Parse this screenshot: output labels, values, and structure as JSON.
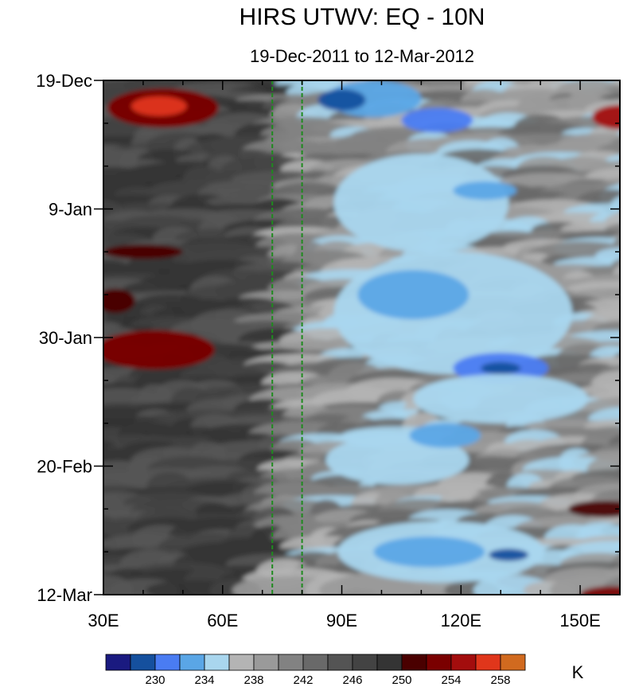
{
  "chart_data": {
    "type": "heatmap",
    "title": "HIRS UTWV: EQ - 10N",
    "subtitle": "19-Dec-2011 to 12-Mar-2012",
    "x_ticks": [
      {
        "value": 30,
        "label": "30E"
      },
      {
        "value": 60,
        "label": "60E"
      },
      {
        "value": 90,
        "label": "90E"
      },
      {
        "value": 120,
        "label": "120E"
      },
      {
        "value": 150,
        "label": "150E"
      }
    ],
    "x_range": [
      30,
      160
    ],
    "x_minor_step": 10,
    "y_ticks": [
      {
        "value": 0,
        "label": "19-Dec"
      },
      {
        "value": 21,
        "label": "9-Jan"
      },
      {
        "value": 42,
        "label": "30-Jan"
      },
      {
        "value": 63,
        "label": "20-Feb"
      },
      {
        "value": 84,
        "label": "12-Mar"
      }
    ],
    "y_range_days": [
      0,
      84
    ],
    "y_minor_step": 7,
    "reference_lines_lon": [
      72.5,
      80
    ],
    "reference_line_color": "#1f8a1f",
    "colorbar": {
      "unit": "K",
      "colors": [
        "#1a1a80",
        "#15509e",
        "#4a7cf2",
        "#5aa6e6",
        "#a9d6ee",
        "#b4b4b4",
        "#9a9a9a",
        "#828282",
        "#696969",
        "#545454",
        "#434343",
        "#343434",
        "#4a0000",
        "#7a0000",
        "#a30d0d",
        "#e0361b",
        "#d16a1f"
      ],
      "labels": [
        {
          "after_box": 2,
          "text": "230"
        },
        {
          "after_box": 4,
          "text": "234"
        },
        {
          "after_box": 6,
          "text": "238"
        },
        {
          "after_box": 8,
          "text": "242"
        },
        {
          "after_box": 10,
          "text": "246"
        },
        {
          "after_box": 12,
          "text": "250"
        },
        {
          "after_box": 14,
          "text": "254"
        },
        {
          "after_box": 16,
          "text": "258"
        }
      ]
    },
    "field_levels": [
      {
        "level": 0,
        "lon_ranges": [
          [
            30,
            160
          ]
        ]
      }
    ],
    "field_patches": [
      {
        "lon": 45,
        "day": 4.5,
        "rx": 14,
        "ry": 3.2,
        "level": 13
      },
      {
        "lon": 44,
        "day": 4.2,
        "rx": 7,
        "ry": 1.6,
        "level": 15
      },
      {
        "lon": 43,
        "day": 44,
        "rx": 15,
        "ry": 3.2,
        "level": 13
      },
      {
        "lon": 160,
        "day": 6,
        "rx": 7,
        "ry": 2,
        "level": 14
      },
      {
        "lon": 158,
        "day": 84,
        "rx": 8,
        "ry": 1.4,
        "level": 13
      },
      {
        "lon": 156,
        "day": 70,
        "rx": 9,
        "ry": 1.4,
        "level": 12
      },
      {
        "lon": 40,
        "day": 28,
        "rx": 10,
        "ry": 1.2,
        "level": 12
      },
      {
        "lon": 33,
        "day": 36,
        "rx": 5,
        "ry": 2,
        "level": 12
      },
      {
        "lon": 98,
        "day": 3,
        "rx": 12,
        "ry": 3,
        "level": 3
      },
      {
        "lon": 90,
        "day": 3.2,
        "rx": 6,
        "ry": 1.8,
        "level": 1
      },
      {
        "lon": 114,
        "day": 6.5,
        "rx": 9,
        "ry": 2,
        "level": 2
      },
      {
        "lon": 118,
        "day": 38,
        "rx": 30,
        "ry": 10,
        "level": 4
      },
      {
        "lon": 108,
        "day": 35,
        "rx": 14,
        "ry": 4,
        "level": 3
      },
      {
        "lon": 130,
        "day": 47,
        "rx": 12,
        "ry": 2.5,
        "level": 2
      },
      {
        "lon": 130,
        "day": 47,
        "rx": 5,
        "ry": 1,
        "level": 1
      },
      {
        "lon": 115,
        "day": 77,
        "rx": 26,
        "ry": 5,
        "level": 4
      },
      {
        "lon": 112,
        "day": 77,
        "rx": 14,
        "ry": 2.5,
        "level": 3
      },
      {
        "lon": 132,
        "day": 77.5,
        "rx": 5,
        "ry": 1,
        "level": 1
      },
      {
        "lon": 104,
        "day": 62,
        "rx": 18,
        "ry": 4,
        "level": 4
      },
      {
        "lon": 116,
        "day": 58,
        "rx": 9,
        "ry": 2,
        "level": 3
      },
      {
        "lon": 110,
        "day": 20,
        "rx": 22,
        "ry": 8,
        "level": 4
      },
      {
        "lon": 126,
        "day": 18,
        "rx": 8,
        "ry": 1.5,
        "level": 3
      },
      {
        "lon": 130,
        "day": 52,
        "rx": 22,
        "ry": 4,
        "level": 4
      }
    ]
  }
}
